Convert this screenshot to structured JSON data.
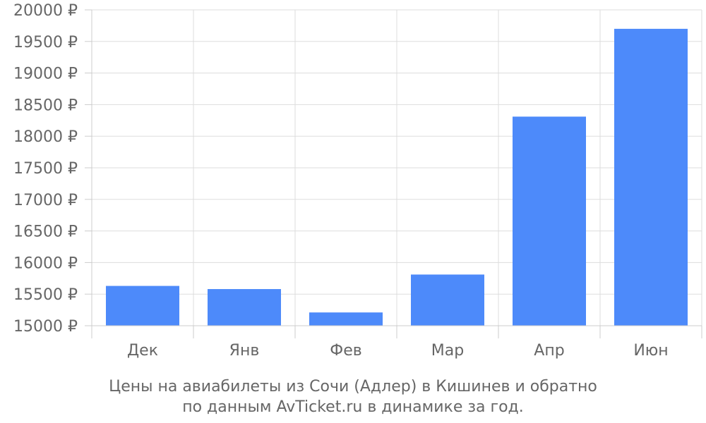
{
  "chart_data": {
    "type": "bar",
    "categories": [
      "Дек",
      "Янв",
      "Фев",
      "Мар",
      "Апр",
      "Июн"
    ],
    "values": [
      15630,
      15580,
      15210,
      15810,
      18310,
      19700
    ],
    "currency_suffix": " ₽",
    "ylim": [
      15000,
      20000
    ],
    "y_ticks": [
      15000,
      15500,
      16000,
      16500,
      17000,
      17500,
      18000,
      18500,
      19000,
      19500,
      20000
    ],
    "grid": true,
    "bar_color": "#4d8afa",
    "caption": {
      "line1": "Цены на авиабилеты из Сочи (Адлер) в Кишинев и обратно",
      "line2": "по данным AvTicket.ru в динамике за год."
    }
  }
}
